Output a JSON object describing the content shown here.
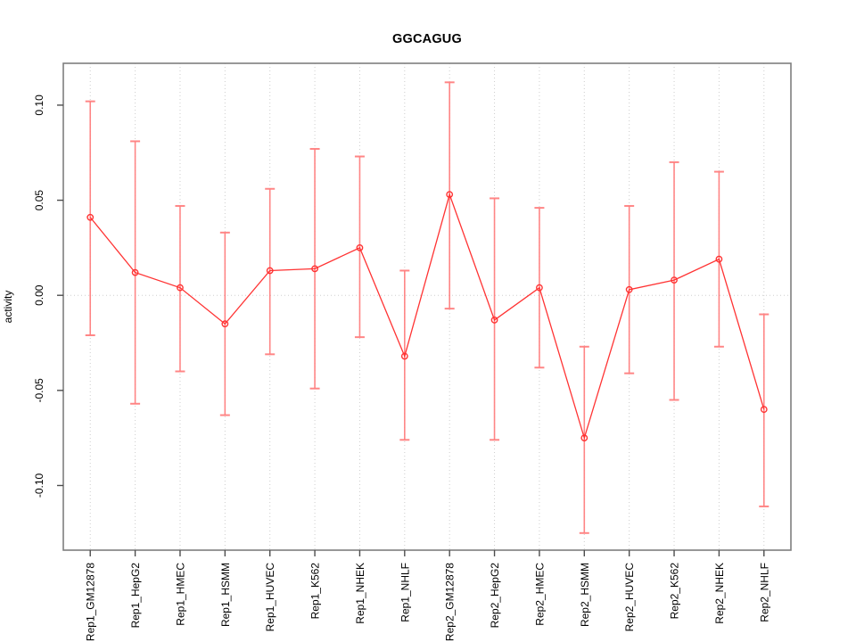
{
  "chart_data": {
    "type": "line",
    "title": "GGCAGUG",
    "xlabel": "",
    "ylabel": "activity",
    "ylim": [
      -0.134,
      0.122
    ],
    "yticks": [
      -0.1,
      -0.05,
      0.0,
      0.05,
      0.1
    ],
    "grid": {
      "vertical_per_category": true,
      "horizontal_zero_line": true,
      "style": "dotted"
    },
    "legend": null,
    "categories": [
      "Rep1_GM12878",
      "Rep1_HepG2",
      "Rep1_HMEC",
      "Rep1_HSMM",
      "Rep1_HUVEC",
      "Rep1_K562",
      "Rep1_NHEK",
      "Rep1_NHLF",
      "Rep2_GM12878",
      "Rep2_HepG2",
      "Rep2_HMEC",
      "Rep2_HSMM",
      "Rep2_HUVEC",
      "Rep2_K562",
      "Rep2_NHEK",
      "Rep2_NHLF"
    ],
    "series": [
      {
        "name": "activity",
        "marker": "open-circle",
        "values": [
          0.041,
          0.012,
          0.004,
          -0.015,
          0.013,
          0.014,
          0.025,
          -0.032,
          0.053,
          -0.013,
          0.004,
          -0.075,
          0.003,
          0.008,
          0.019,
          -0.06
        ],
        "ci_upper": [
          0.102,
          0.081,
          0.047,
          0.033,
          0.056,
          0.077,
          0.073,
          0.013,
          0.112,
          0.051,
          0.046,
          -0.027,
          0.047,
          0.07,
          0.065,
          -0.01
        ],
        "ci_lower": [
          -0.021,
          -0.057,
          -0.04,
          -0.063,
          -0.031,
          -0.049,
          -0.022,
          -0.076,
          -0.007,
          -0.076,
          -0.038,
          -0.125,
          -0.041,
          -0.055,
          -0.027,
          -0.111
        ]
      }
    ],
    "colors": {
      "line": "#ff3333",
      "marker": "#ff3333",
      "error_bar": "#ff8080",
      "axis_box": "#7f7f7f",
      "tick": "#4d4d4d",
      "text": "#000000",
      "gridline": "#cdcdcd"
    }
  }
}
